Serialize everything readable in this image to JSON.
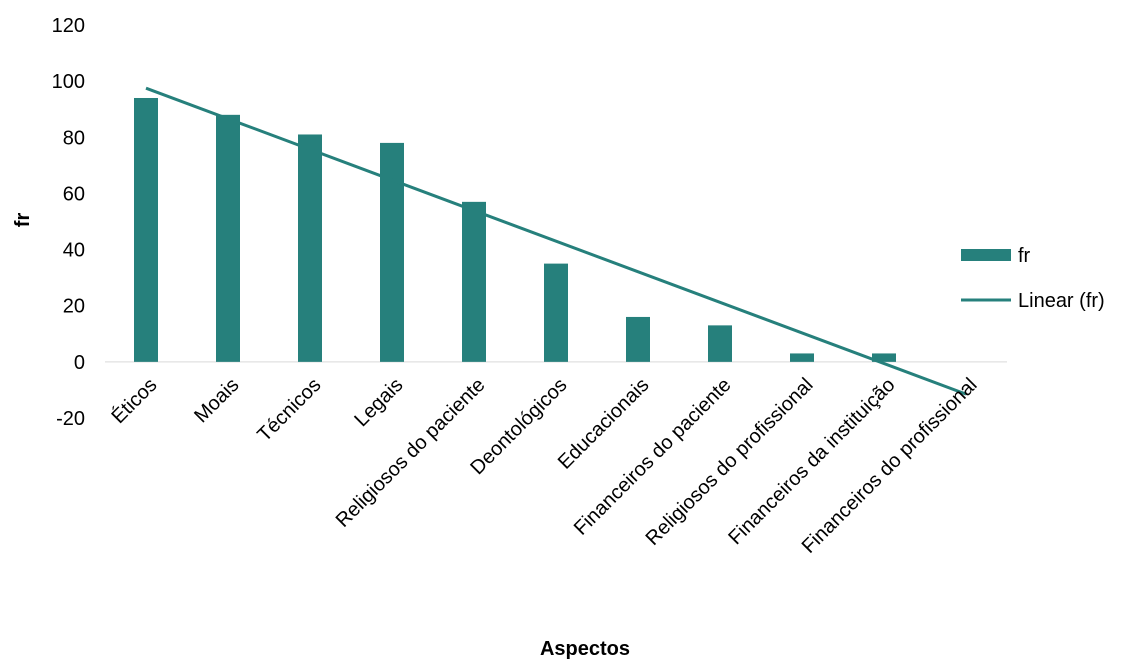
{
  "chart_data": {
    "type": "bar",
    "xlabel": "Aspectos",
    "ylabel": "fr",
    "ylim": [
      -20,
      120
    ],
    "yticks": [
      120,
      100,
      80,
      60,
      40,
      20,
      0,
      -20
    ],
    "categories": [
      "Éticos",
      "Moais",
      "Técnicos",
      "Legais",
      "Religiosos do paciente",
      "Deontológicos",
      "Educacionais",
      "Financeiros do paciente",
      "Religiosos do profissional",
      "Financeiros da instituição",
      "Financeiros do profissional"
    ],
    "series": [
      {
        "name": "fr",
        "values": [
          94,
          88,
          81,
          78,
          57,
          35,
          16,
          13,
          3,
          3,
          0
        ],
        "color": "#26807C"
      }
    ],
    "trendline": {
      "name": "Linear (fr)",
      "type": "linear",
      "start": 97.5,
      "end": -11.5,
      "color": "#26807C"
    },
    "legend": {
      "position": "right",
      "entries": [
        "fr",
        "Linear (fr)"
      ]
    },
    "grid": false
  }
}
